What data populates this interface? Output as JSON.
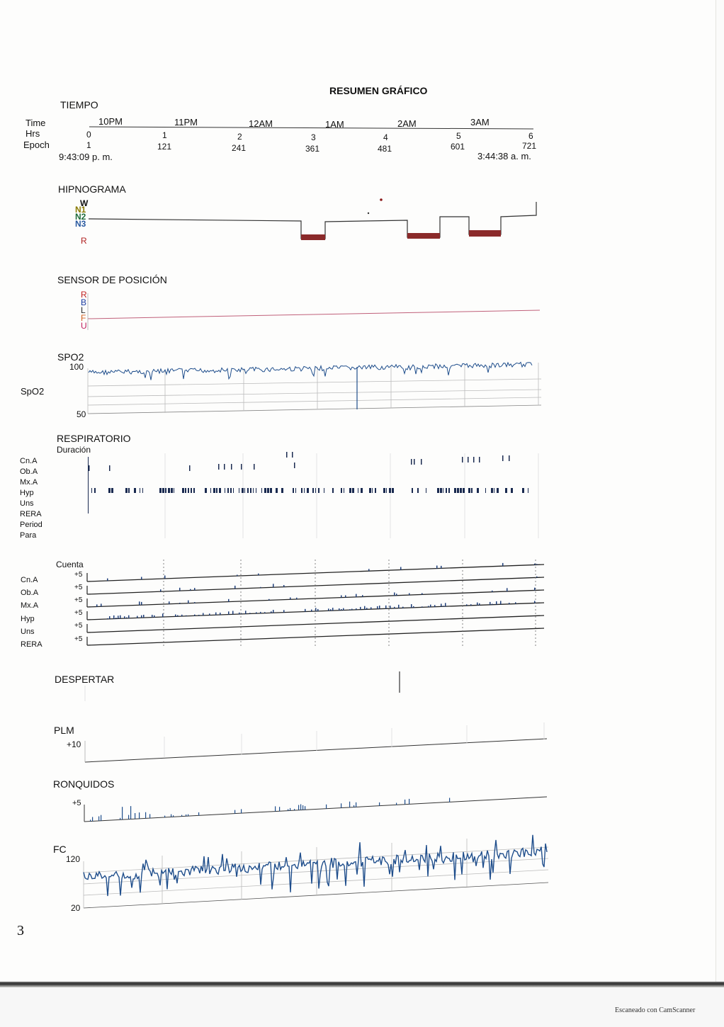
{
  "report": {
    "title": "RESUMEN GRÁFICO",
    "page_number": "3",
    "scanner_note": "Escaneado con CamScanner"
  },
  "tiempo": {
    "heading": "TIEMPO",
    "row_labels": [
      "Time",
      "Hrs",
      "Epoch"
    ],
    "hours": [
      "10PM",
      "11PM",
      "12AM",
      "1AM",
      "2AM",
      "3AM"
    ],
    "hrs": [
      "0",
      "1",
      "2",
      "3",
      "4",
      "5",
      "6"
    ],
    "epochs": [
      "1",
      "121",
      "241",
      "361",
      "481",
      "601",
      "721"
    ],
    "start_time": "9:43:09 p. m.",
    "end_time": "3:44:38 a. m."
  },
  "hipnograma": {
    "heading": "HIPNOGRAMA",
    "stages": [
      "W",
      "N1",
      "N2",
      "N3",
      "R"
    ],
    "stage_colors": [
      "#1a1a1a",
      "#8a7a00",
      "#1f6b3a",
      "#2a5aa0",
      "#b02020"
    ],
    "rem_color": "#8b2a2a"
  },
  "posicion": {
    "heading": "SENSOR DE POSICIÓN",
    "positions": [
      "R",
      "B",
      "L",
      "F",
      "U"
    ],
    "position_colors": [
      "#c02020",
      "#1a3aa0",
      "#2a2a2a",
      "#d06020",
      "#c02060"
    ]
  },
  "spo2": {
    "heading": "SPO2",
    "side_label": "SpO2",
    "y_max": "100",
    "y_min": "50",
    "line_color": "#1f4e8c"
  },
  "respiratorio": {
    "heading": "RESPIRATORIO",
    "duration_label": "Duración",
    "rows": [
      "Cn.A",
      "Ob.A",
      "Mx.A",
      "Hyp",
      "Uns",
      "RERA",
      "Period",
      "Para"
    ],
    "count_label": "Cuenta",
    "count_rows": [
      "Cn.A",
      "Ob.A",
      "Mx.A",
      "Hyp",
      "Uns",
      "RERA"
    ],
    "count_scale": "+5"
  },
  "despertar": {
    "heading": "DESPERTAR"
  },
  "plm": {
    "heading": "PLM",
    "scale": "+10"
  },
  "ronquidos": {
    "heading": "RONQUIDOS",
    "scale": "+5"
  },
  "fc": {
    "heading": "FC",
    "y_max": "120",
    "y_min": "20",
    "line_color": "#1f4e8c"
  }
}
